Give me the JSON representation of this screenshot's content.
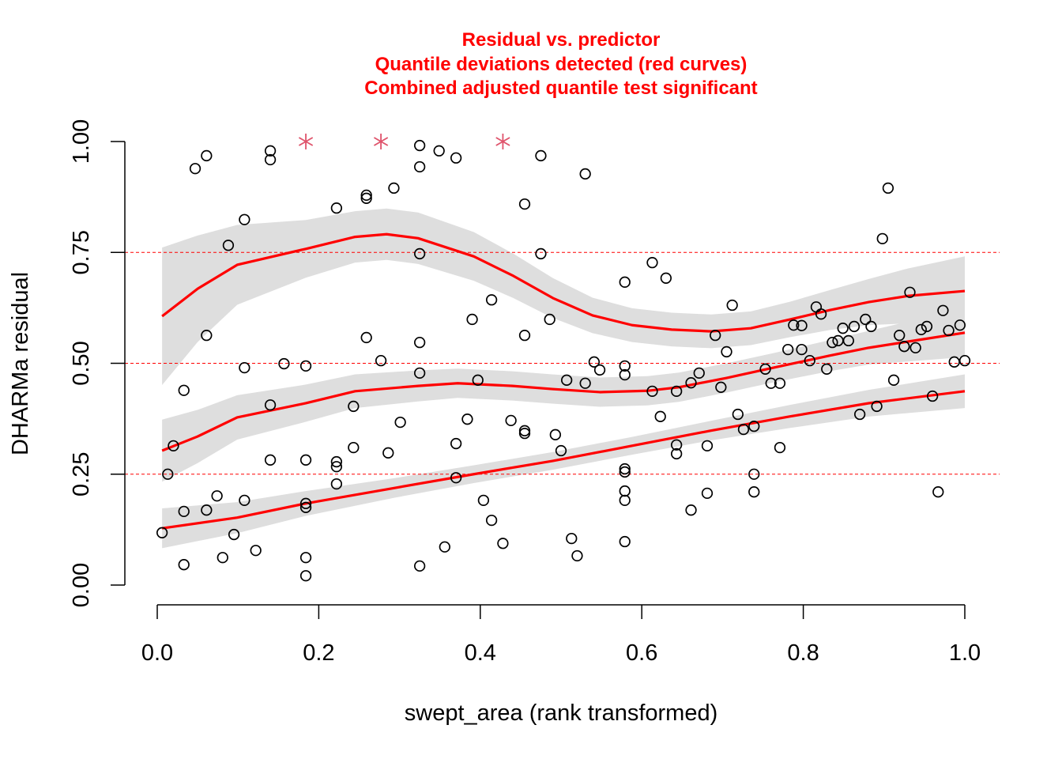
{
  "chart_data": {
    "type": "scatter",
    "title": [
      "Residual vs. predictor",
      "Quantile deviations detected (red curves)",
      "Combined adjusted quantile test significant"
    ],
    "xlabel": "swept_area (rank transformed)",
    "ylabel": "DHARMa residual",
    "xlim": [
      0,
      1
    ],
    "ylim": [
      0,
      1
    ],
    "x_ticks": [
      "0.0",
      "0.2",
      "0.4",
      "0.6",
      "0.8",
      "1.0"
    ],
    "y_ticks": [
      "0.00",
      "0.25",
      "0.50",
      "0.75",
      "1.00"
    ],
    "reference_lines": [
      0.25,
      0.5,
      0.75
    ],
    "colors": {
      "title": "#ff0000",
      "curve": "#ff0000",
      "band": "#dedede",
      "outlier": "#df536b",
      "points": "#000000"
    },
    "outliers": [
      [
        0.184,
        1.0
      ],
      [
        0.277,
        1.0
      ],
      [
        0.428,
        1.0
      ]
    ],
    "points": [
      [
        0.006,
        0.118
      ],
      [
        0.013,
        0.25
      ],
      [
        0.02,
        0.314
      ],
      [
        0.033,
        0.439
      ],
      [
        0.033,
        0.166
      ],
      [
        0.033,
        0.046
      ],
      [
        0.047,
        0.939
      ],
      [
        0.061,
        0.968
      ],
      [
        0.061,
        0.563
      ],
      [
        0.061,
        0.169
      ],
      [
        0.074,
        0.201
      ],
      [
        0.081,
        0.062
      ],
      [
        0.088,
        0.766
      ],
      [
        0.095,
        0.114
      ],
      [
        0.108,
        0.824
      ],
      [
        0.108,
        0.49
      ],
      [
        0.108,
        0.191
      ],
      [
        0.122,
        0.078
      ],
      [
        0.14,
        0.979
      ],
      [
        0.14,
        0.959
      ],
      [
        0.14,
        0.406
      ],
      [
        0.14,
        0.282
      ],
      [
        0.157,
        0.499
      ],
      [
        0.184,
        0.494
      ],
      [
        0.184,
        0.282
      ],
      [
        0.184,
        0.184
      ],
      [
        0.184,
        0.175
      ],
      [
        0.184,
        0.062
      ],
      [
        0.184,
        0.021
      ],
      [
        0.222,
        0.85
      ],
      [
        0.222,
        0.278
      ],
      [
        0.222,
        0.267
      ],
      [
        0.222,
        0.228
      ],
      [
        0.243,
        0.403
      ],
      [
        0.243,
        0.31
      ],
      [
        0.259,
        0.879
      ],
      [
        0.259,
        0.872
      ],
      [
        0.259,
        0.558
      ],
      [
        0.277,
        0.506
      ],
      [
        0.286,
        0.298
      ],
      [
        0.293,
        0.895
      ],
      [
        0.301,
        0.367
      ],
      [
        0.325,
        0.991
      ],
      [
        0.325,
        0.943
      ],
      [
        0.325,
        0.747
      ],
      [
        0.325,
        0.547
      ],
      [
        0.325,
        0.478
      ],
      [
        0.325,
        0.043
      ],
      [
        0.349,
        0.979
      ],
      [
        0.356,
        0.086
      ],
      [
        0.37,
        0.963
      ],
      [
        0.37,
        0.319
      ],
      [
        0.37,
        0.242
      ],
      [
        0.384,
        0.374
      ],
      [
        0.39,
        0.599
      ],
      [
        0.397,
        0.462
      ],
      [
        0.404,
        0.191
      ],
      [
        0.414,
        0.146
      ],
      [
        0.414,
        0.643
      ],
      [
        0.428,
        0.094
      ],
      [
        0.438,
        0.371
      ],
      [
        0.455,
        0.859
      ],
      [
        0.455,
        0.563
      ],
      [
        0.455,
        0.348
      ],
      [
        0.455,
        0.342
      ],
      [
        0.475,
        0.968
      ],
      [
        0.475,
        0.747
      ],
      [
        0.486,
        0.599
      ],
      [
        0.493,
        0.339
      ],
      [
        0.5,
        0.303
      ],
      [
        0.507,
        0.462
      ],
      [
        0.513,
        0.105
      ],
      [
        0.52,
        0.066
      ],
      [
        0.53,
        0.455
      ],
      [
        0.53,
        0.927
      ],
      [
        0.541,
        0.503
      ],
      [
        0.548,
        0.485
      ],
      [
        0.579,
        0.683
      ],
      [
        0.579,
        0.494
      ],
      [
        0.579,
        0.474
      ],
      [
        0.579,
        0.262
      ],
      [
        0.579,
        0.255
      ],
      [
        0.579,
        0.212
      ],
      [
        0.579,
        0.191
      ],
      [
        0.579,
        0.098
      ],
      [
        0.613,
        0.727
      ],
      [
        0.613,
        0.437
      ],
      [
        0.623,
        0.38
      ],
      [
        0.63,
        0.692
      ],
      [
        0.643,
        0.437
      ],
      [
        0.643,
        0.316
      ],
      [
        0.643,
        0.296
      ],
      [
        0.661,
        0.169
      ],
      [
        0.661,
        0.456
      ],
      [
        0.671,
        0.478
      ],
      [
        0.681,
        0.314
      ],
      [
        0.681,
        0.207
      ],
      [
        0.691,
        0.563
      ],
      [
        0.698,
        0.446
      ],
      [
        0.705,
        0.526
      ],
      [
        0.712,
        0.631
      ],
      [
        0.719,
        0.385
      ],
      [
        0.726,
        0.351
      ],
      [
        0.739,
        0.358
      ],
      [
        0.739,
        0.25
      ],
      [
        0.739,
        0.21
      ],
      [
        0.753,
        0.487
      ],
      [
        0.76,
        0.455
      ],
      [
        0.771,
        0.455
      ],
      [
        0.771,
        0.31
      ],
      [
        0.781,
        0.531
      ],
      [
        0.788,
        0.586
      ],
      [
        0.798,
        0.585
      ],
      [
        0.798,
        0.531
      ],
      [
        0.808,
        0.506
      ],
      [
        0.816,
        0.627
      ],
      [
        0.822,
        0.611
      ],
      [
        0.829,
        0.487
      ],
      [
        0.836,
        0.547
      ],
      [
        0.843,
        0.551
      ],
      [
        0.849,
        0.579
      ],
      [
        0.856,
        0.551
      ],
      [
        0.863,
        0.583
      ],
      [
        0.87,
        0.385
      ],
      [
        0.877,
        0.599
      ],
      [
        0.884,
        0.583
      ],
      [
        0.891,
        0.403
      ],
      [
        0.898,
        0.781
      ],
      [
        0.905,
        0.895
      ],
      [
        0.912,
        0.462
      ],
      [
        0.919,
        0.563
      ],
      [
        0.925,
        0.538
      ],
      [
        0.932,
        0.66
      ],
      [
        0.939,
        0.535
      ],
      [
        0.946,
        0.576
      ],
      [
        0.953,
        0.583
      ],
      [
        0.96,
        0.426
      ],
      [
        0.967,
        0.21
      ],
      [
        0.973,
        0.619
      ],
      [
        0.98,
        0.574
      ],
      [
        0.987,
        0.503
      ],
      [
        0.994,
        0.586
      ],
      [
        1.0,
        0.506
      ]
    ],
    "quantile_curves": [
      {
        "quantile": 0.75,
        "x": [
          0.006,
          0.05,
          0.099,
          0.184,
          0.245,
          0.284,
          0.323,
          0.392,
          0.441,
          0.49,
          0.539,
          0.588,
          0.637,
          0.686,
          0.735,
          0.784,
          0.833,
          0.881,
          0.93,
          1.0
        ],
        "y": [
          0.606,
          0.668,
          0.722,
          0.758,
          0.785,
          0.791,
          0.782,
          0.741,
          0.697,
          0.647,
          0.608,
          0.586,
          0.576,
          0.572,
          0.579,
          0.599,
          0.62,
          0.638,
          0.652,
          0.663
        ],
        "band_halfwidth": [
          0.155,
          0.12,
          0.09,
          0.065,
          0.058,
          0.058,
          0.058,
          0.055,
          0.05,
          0.045,
          0.04,
          0.038,
          0.038,
          0.038,
          0.038,
          0.04,
          0.045,
          0.052,
          0.062,
          0.078
        ]
      },
      {
        "quantile": 0.5,
        "x": [
          0.006,
          0.05,
          0.099,
          0.184,
          0.245,
          0.323,
          0.372,
          0.44,
          0.489,
          0.548,
          0.607,
          0.646,
          0.705,
          0.763,
          0.832,
          0.881,
          0.93,
          1.0
        ],
        "y": [
          0.303,
          0.335,
          0.378,
          0.41,
          0.437,
          0.449,
          0.455,
          0.449,
          0.442,
          0.435,
          0.438,
          0.446,
          0.467,
          0.49,
          0.517,
          0.535,
          0.549,
          0.569
        ],
        "band_halfwidth": [
          0.07,
          0.06,
          0.05,
          0.042,
          0.038,
          0.035,
          0.033,
          0.033,
          0.033,
          0.033,
          0.033,
          0.033,
          0.033,
          0.033,
          0.035,
          0.038,
          0.045,
          0.055
        ]
      },
      {
        "quantile": 0.25,
        "x": [
          0.006,
          0.099,
          0.184,
          0.294,
          0.392,
          0.49,
          0.588,
          0.685,
          0.783,
          0.881,
          1.0
        ],
        "y": [
          0.128,
          0.152,
          0.184,
          0.219,
          0.25,
          0.28,
          0.314,
          0.348,
          0.38,
          0.41,
          0.437
        ],
        "band_halfwidth": [
          0.045,
          0.035,
          0.028,
          0.022,
          0.02,
          0.02,
          0.02,
          0.022,
          0.026,
          0.03,
          0.038
        ]
      }
    ]
  }
}
